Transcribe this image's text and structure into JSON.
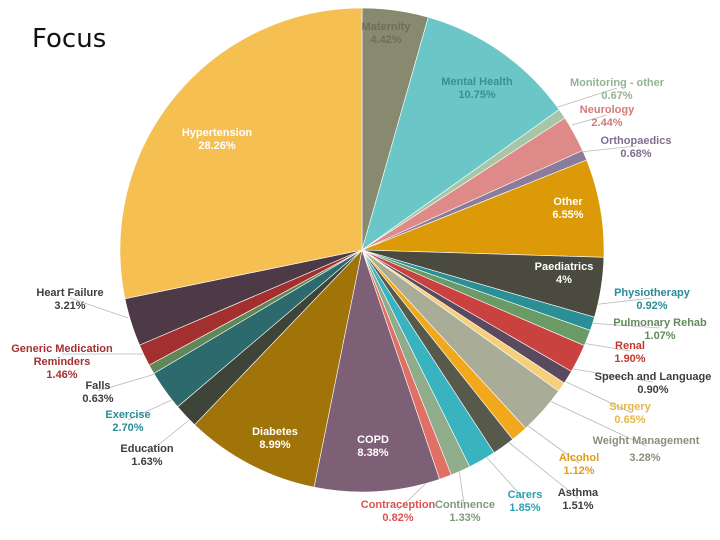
{
  "page": {
    "title": "Focus"
  },
  "chart_data": {
    "type": "pie",
    "title": "Focus",
    "unit": "%",
    "start": "12 o'clock",
    "direction": "clockwise",
    "slices": [
      {
        "label": "Maternity",
        "value": 4.42,
        "display": "4.42%",
        "color": "#878a6e",
        "text_color": "#6d6e58",
        "inside": true
      },
      {
        "label": "Mental Health",
        "value": 10.75,
        "display": "10.75%",
        "color": "#6ac6c7",
        "text_color": "#3a8f93",
        "inside": true
      },
      {
        "label": "Monitoring - other",
        "value": 0.67,
        "display": "0.67%",
        "color": "#a5c7a8",
        "text_color": "#93b493",
        "inside": false
      },
      {
        "label": "Neurology",
        "value": 2.44,
        "display": "2.44%",
        "color": "#de8a89",
        "text_color": "#d47b78",
        "inside": false
      },
      {
        "label": "Orthopaedics",
        "value": 0.68,
        "display": "0.68%",
        "color": "#8a7c9a",
        "text_color": "#7e6f8f",
        "inside": false
      },
      {
        "label": "Other",
        "value": 6.55,
        "display": "6.55%",
        "color": "#dc9a08",
        "text_color": "#ffffff",
        "inside": true
      },
      {
        "label": "Paediatrics",
        "value": 4,
        "display": "4%",
        "color": "#4a4a3f",
        "text_color": "#ffffff",
        "inside": true
      },
      {
        "label": "Physiotherapy",
        "value": 0.92,
        "display": "0.92%",
        "color": "#2b8f96",
        "text_color": "#2a8c97",
        "inside": false
      },
      {
        "label": "Pulmonary Rehab",
        "value": 1.07,
        "display": "1.07%",
        "color": "#6a9a66",
        "text_color": "#5f8c59",
        "inside": false
      },
      {
        "label": "Renal",
        "value": 1.9,
        "display": "1.90%",
        "color": "#c9423f",
        "text_color": "#c0392b",
        "inside": false
      },
      {
        "label": "Speech and Language",
        "value": 0.9,
        "display": "0.90%",
        "color": "#5a4a5e",
        "text_color": "#3d3d3d",
        "inside": false
      },
      {
        "label": "Surgery",
        "value": 0.65,
        "display": "0.65%",
        "color": "#f6cf7a",
        "text_color": "#e7b64a",
        "inside": false
      },
      {
        "label": "Weight Management",
        "value": 3.28,
        "display": "3.28%",
        "color": "#a9ad97",
        "text_color": "#8c8f7a",
        "inside": false
      },
      {
        "label": "Alcohol",
        "value": 1.12,
        "display": "1.12%",
        "color": "#f1a81c",
        "text_color": "#e39b12",
        "inside": false
      },
      {
        "label": "Asthma",
        "value": 1.51,
        "display": "1.51%",
        "color": "#575a4a",
        "text_color": "#3d3d3d",
        "inside": false
      },
      {
        "label": "Carers",
        "value": 1.85,
        "display": "1.85%",
        "color": "#3ab3c0",
        "text_color": "#2aa0b0",
        "inside": false
      },
      {
        "label": "Continence",
        "value": 1.33,
        "display": "1.33%",
        "color": "#8fad8a",
        "text_color": "#7f9a7a",
        "inside": false
      },
      {
        "label": "Contraception",
        "value": 0.82,
        "display": "0.82%",
        "color": "#e06f66",
        "text_color": "#d9534f",
        "inside": false
      },
      {
        "label": "COPD",
        "value": 8.38,
        "display": "8.38%",
        "color": "#7d5f76",
        "text_color": "#ffffff",
        "inside": true
      },
      {
        "label": "Diabetes",
        "value": 8.99,
        "display": "8.99%",
        "color": "#a07408",
        "text_color": "#ffffff",
        "inside": true
      },
      {
        "label": "Education",
        "value": 1.63,
        "display": "1.63%",
        "color": "#3f4438",
        "text_color": "#3d3d3d",
        "inside": false
      },
      {
        "label": "Exercise",
        "value": 2.7,
        "display": "2.70%",
        "color": "#2d6a6e",
        "text_color": "#2a8c97",
        "inside": false
      },
      {
        "label": "Falls",
        "value": 0.63,
        "display": "0.63%",
        "color": "#5f8758",
        "text_color": "#3d3d3d",
        "inside": false
      },
      {
        "label": "Generic Medication Reminders",
        "value": 1.46,
        "display": "1.46%",
        "color": "#a3302f",
        "text_color": "#a33130",
        "inside": false
      },
      {
        "label": "Heart Failure",
        "value": 3.21,
        "display": "3.21%",
        "color": "#4d3a46",
        "text_color": "#3d3d3d",
        "inside": false
      },
      {
        "label": "Hypertension",
        "value": 28.26,
        "display": "28.26%",
        "color": "#f5bf52",
        "text_color": "#ffffff",
        "inside": true
      }
    ]
  }
}
